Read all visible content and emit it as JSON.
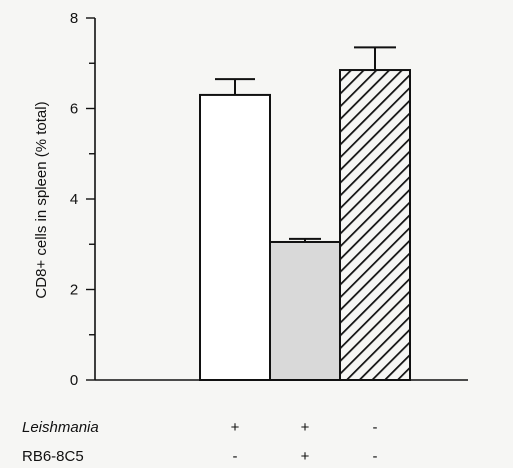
{
  "chart_data": {
    "type": "bar",
    "ylabel": "CD8+ cells in spleen (% total)",
    "ylim": [
      0,
      8
    ],
    "yticks": [
      0,
      2,
      4,
      6,
      8
    ],
    "grid": false,
    "legend": "none",
    "categories": [
      "",
      "",
      ""
    ],
    "values": [
      6.3,
      3.05,
      6.85
    ],
    "errors": [
      0.35,
      0.07,
      0.5
    ],
    "fills": [
      "white",
      "light-gray",
      "diagonal-hatch"
    ],
    "colors": {
      "outline": "#111111",
      "gray_fill": "#d9d9d9",
      "background": "#f6f6f4"
    },
    "conditions": [
      {
        "name": "Leishmania",
        "italic": true,
        "marks": [
          "+",
          "+",
          "-"
        ]
      },
      {
        "name": "RB6-8C5",
        "italic": false,
        "marks": [
          "-",
          "+",
          "-"
        ]
      }
    ]
  }
}
